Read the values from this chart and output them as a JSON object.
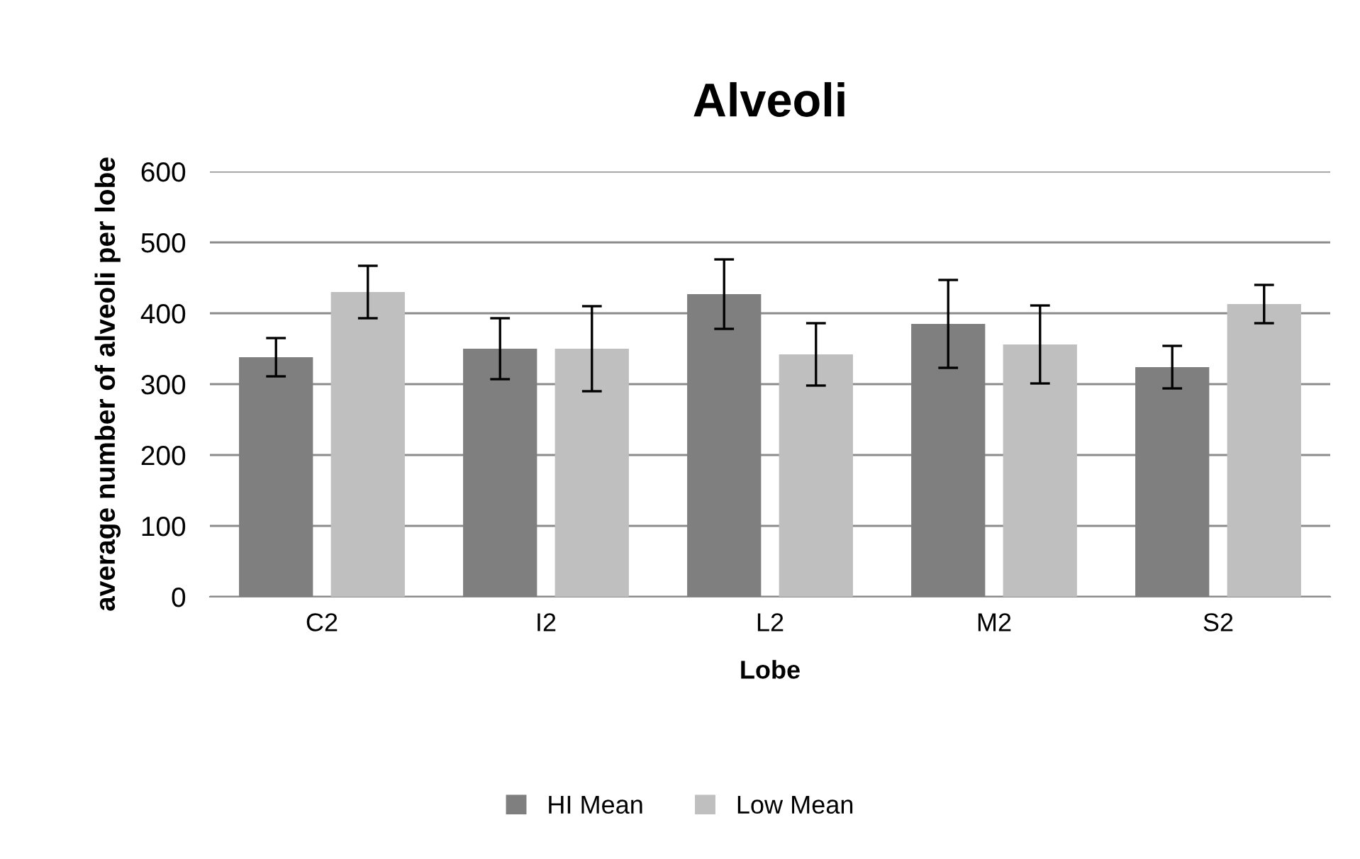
{
  "chart_data": {
    "type": "bar",
    "title": "Alveoli",
    "xlabel": "Lobe",
    "ylabel": "average number of alveoli per lobe",
    "categories": [
      "C2",
      "I2",
      "L2",
      "M2",
      "S2"
    ],
    "series": [
      {
        "name": "HI Mean",
        "color": "#7f7f7f",
        "values": [
          338,
          350,
          427,
          385,
          324
        ],
        "errors": [
          27,
          43,
          49,
          62,
          30
        ]
      },
      {
        "name": "Low Mean",
        "color": "#bfbfbf",
        "values": [
          430,
          350,
          342,
          356,
          413
        ],
        "errors": [
          37,
          60,
          44,
          55,
          27
        ]
      }
    ],
    "ylim": [
      0,
      600
    ],
    "yticks": [
      0,
      100,
      200,
      300,
      400,
      500,
      600
    ],
    "grid": "y",
    "legend": "bottom"
  }
}
